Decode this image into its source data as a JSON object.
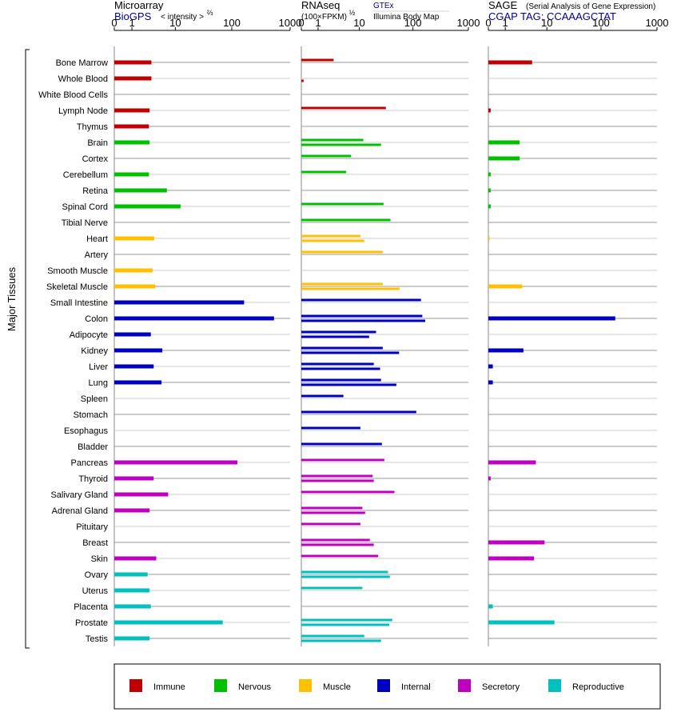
{
  "headers": {
    "microarray_title": "Microarray",
    "microarray_source": "BioGPS",
    "microarray_unit": "< intensity >",
    "microarray_exp": "⅔",
    "rnaseq_title": "RNAseq",
    "rnaseq_unit": "(100×FPKM)",
    "rnaseq_exp": "½",
    "rnaseq_src1": "GTEx",
    "rnaseq_src2": "Illumina Body Map",
    "sage_title": "SAGE",
    "sage_subtitle": "(Serial Analysis of Gene Expression)",
    "sage_tag": "CGAP TAG: CCAAAGCTAT",
    "ylabel": "Major Tissues"
  },
  "colors": {
    "Immune": "#c00000",
    "Nervous": "#00c000",
    "Muscle": "#ffc000",
    "Internal": "#0000c0",
    "Secretory": "#c000c0",
    "Reproductive": "#00c0c0"
  },
  "chart_data": {
    "type": "bar",
    "xscale": "log(1+x)",
    "xlim": [
      0,
      1000
    ],
    "ticks": [
      "0",
      "1",
      "10",
      "100",
      "1000"
    ],
    "tick_values": [
      0,
      1,
      10,
      100,
      1000
    ],
    "categories": [
      "Bone Marrow",
      "Whole Blood",
      "White Blood Cells",
      "Lymph Node",
      "Thymus",
      "Brain",
      "Cortex",
      "Cerebellum",
      "Retina",
      "Spinal Cord",
      "Tibial Nerve",
      "Heart",
      "Artery",
      "Smooth Muscle",
      "Skeletal Muscle",
      "Small Intestine",
      "Colon",
      "Adipocyte",
      "Kidney",
      "Liver",
      "Lung",
      "Spleen",
      "Stomach",
      "Esophagus",
      "Bladder",
      "Pancreas",
      "Thyroid",
      "Salivary Gland",
      "Adrenal Gland",
      "Pituitary",
      "Breast",
      "Skin",
      "Ovary",
      "Uterus",
      "Placenta",
      "Prostate",
      "Testis"
    ],
    "groups": [
      "Immune",
      "Immune",
      "Immune",
      "Immune",
      "Immune",
      "Nervous",
      "Nervous",
      "Nervous",
      "Nervous",
      "Nervous",
      "Nervous",
      "Muscle",
      "Muscle",
      "Muscle",
      "Muscle",
      "Internal",
      "Internal",
      "Internal",
      "Internal",
      "Internal",
      "Internal",
      "Internal",
      "Internal",
      "Internal",
      "Internal",
      "Secretory",
      "Secretory",
      "Secretory",
      "Secretory",
      "Secretory",
      "Secretory",
      "Secretory",
      "Reproductive",
      "Reproductive",
      "Reproductive",
      "Reproductive",
      "Reproductive"
    ],
    "legend": [
      "Immune",
      "Nervous",
      "Muscle",
      "Internal",
      "Secretory",
      "Reproductive"
    ],
    "microarray": [
      3.3,
      3.3,
      null,
      3.0,
      2.9,
      3.0,
      null,
      2.9,
      6.9,
      12.5,
      null,
      3.8,
      null,
      3.5,
      4.0,
      163,
      530,
      3.2,
      5.6,
      3.7,
      5.4,
      null,
      null,
      null,
      null,
      125,
      3.7,
      7.3,
      3.0,
      null,
      null,
      4.2,
      2.7,
      3.0,
      3.2,
      70,
      3.0
    ],
    "rnaseq_gtex": [
      2.8,
      null,
      null,
      32,
      null,
      12,
      6.8,
      5.4,
      null,
      29,
      39,
      10.5,
      28,
      null,
      28,
      140,
      148,
      21,
      28,
      19,
      26,
      4.7,
      115,
      10.5,
      27,
      30,
      18,
      46,
      11.5,
      10.5,
      16,
      23,
      35,
      11.5,
      null,
      42,
      12.5
    ],
    "rnaseq_ibm": [
      null,
      0.1,
      null,
      null,
      null,
      26,
      null,
      null,
      null,
      null,
      null,
      12.5,
      null,
      null,
      57,
      null,
      167,
      15.5,
      56,
      25,
      50,
      null,
      null,
      null,
      null,
      null,
      19,
      null,
      13,
      null,
      19,
      null,
      38,
      null,
      null,
      37,
      26
    ],
    "sage": [
      5.0,
      null,
      null,
      0.1,
      null,
      2.6,
      2.6,
      0.1,
      0.1,
      0.1,
      null,
      0.03,
      null,
      null,
      3.0,
      null,
      180,
      null,
      3.2,
      0.2,
      0.2,
      null,
      null,
      null,
      null,
      6.0,
      0.1,
      null,
      null,
      null,
      9.0,
      5.5,
      null,
      null,
      0.2,
      14,
      null
    ]
  }
}
